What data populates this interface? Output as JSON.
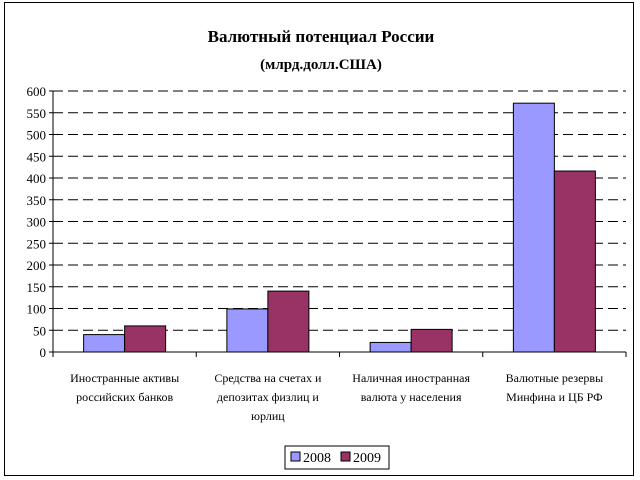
{
  "chart_data": {
    "type": "bar",
    "title": "Валютный потенциал России",
    "subtitle": "(млрд.долл.США)",
    "categories": [
      [
        "Иностранные активы",
        "российских банков"
      ],
      [
        "Средства на счетах и",
        "депозитах физлиц и",
        "юрлиц"
      ],
      [
        "Наличная иностранная",
        "валюта у населения"
      ],
      [
        "Валютные резервы",
        "Минфина и ЦБ РФ"
      ]
    ],
    "series": [
      {
        "name": "2008",
        "values": [
          40,
          99,
          22,
          572
        ],
        "color": "#9999ff"
      },
      {
        "name": "2009",
        "values": [
          60,
          140,
          52,
          416
        ],
        "color": "#993366"
      }
    ],
    "ylim": [
      0,
      600
    ],
    "yticks": [
      0,
      50,
      100,
      150,
      200,
      250,
      300,
      350,
      400,
      450,
      500,
      550,
      600
    ],
    "grid": true,
    "legend_position": "bottom"
  }
}
